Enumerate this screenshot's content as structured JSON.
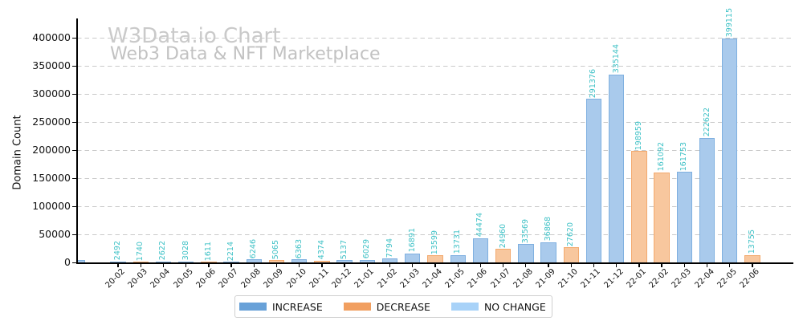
{
  "watermark": {
    "title": "W3Data.io Chart",
    "subtitle": "Web3 Data & NFT Marketplace"
  },
  "chart_data": {
    "type": "bar",
    "title": "W3Data.io Chart",
    "subtitle": "Web3 Data & NFT Marketplace",
    "xlabel": "",
    "ylabel": "Domain Count",
    "ylim": [
      0,
      435000
    ],
    "yticks": [
      0,
      50000,
      100000,
      150000,
      200000,
      250000,
      300000,
      350000,
      400000
    ],
    "grid": "horizontal dashed",
    "bar_value_labels": true,
    "legend_position": "bottom center",
    "categories": [
      "20-02",
      "20-03",
      "20-04",
      "20-05",
      "20-06",
      "20-07",
      "20-08",
      "20-09",
      "20-10",
      "20-11",
      "20-12",
      "21-01",
      "21-02",
      "21-03",
      "21-04",
      "21-05",
      "21-06",
      "21-07",
      "21-08",
      "21-09",
      "21-10",
      "21-11",
      "21-12",
      "22-01",
      "22-02",
      "22-03",
      "22-04",
      "22-05",
      "22-06"
    ],
    "points": [
      {
        "category": "20-02",
        "value": 2492,
        "series": "INCREASE"
      },
      {
        "category": "20-03",
        "value": 1740,
        "series": "DECREASE"
      },
      {
        "category": "20-04",
        "value": 2622,
        "series": "INCREASE"
      },
      {
        "category": "20-05",
        "value": 3028,
        "series": "INCREASE"
      },
      {
        "category": "20-06",
        "value": 1611,
        "series": "DECREASE"
      },
      {
        "category": "20-07",
        "value": 2214,
        "series": "INCREASE"
      },
      {
        "category": "20-08",
        "value": 6246,
        "series": "INCREASE"
      },
      {
        "category": "20-09",
        "value": 5065,
        "series": "DECREASE"
      },
      {
        "category": "20-10",
        "value": 6363,
        "series": "INCREASE"
      },
      {
        "category": "20-11",
        "value": 4374,
        "series": "DECREASE"
      },
      {
        "category": "20-12",
        "value": 5137,
        "series": "INCREASE"
      },
      {
        "category": "21-01",
        "value": 6029,
        "series": "INCREASE"
      },
      {
        "category": "21-02",
        "value": 7794,
        "series": "INCREASE"
      },
      {
        "category": "21-03",
        "value": 16891,
        "series": "INCREASE"
      },
      {
        "category": "21-04",
        "value": 13599,
        "series": "DECREASE"
      },
      {
        "category": "21-05",
        "value": 13731,
        "series": "INCREASE"
      },
      {
        "category": "21-06",
        "value": 44474,
        "series": "INCREASE"
      },
      {
        "category": "21-07",
        "value": 24960,
        "series": "DECREASE"
      },
      {
        "category": "21-08",
        "value": 33569,
        "series": "INCREASE"
      },
      {
        "category": "21-09",
        "value": 36868,
        "series": "INCREASE"
      },
      {
        "category": "21-10",
        "value": 27620,
        "series": "DECREASE"
      },
      {
        "category": "21-11",
        "value": 291376,
        "series": "INCREASE"
      },
      {
        "category": "21-12",
        "value": 335144,
        "series": "INCREASE"
      },
      {
        "category": "22-01",
        "value": 198959,
        "series": "DECREASE"
      },
      {
        "category": "22-02",
        "value": 161092,
        "series": "DECREASE"
      },
      {
        "category": "22-03",
        "value": 161753,
        "series": "INCREASE"
      },
      {
        "category": "22-04",
        "value": 222622,
        "series": "INCREASE"
      },
      {
        "category": "22-05",
        "value": 399115,
        "series": "INCREASE"
      },
      {
        "category": "22-06",
        "value": 13755,
        "series": "DECREASE"
      }
    ],
    "left_edge_clipped_bar": {
      "series": "INCREASE",
      "approx_value": 6000,
      "note": "small unlabeled bar clipped by the left axis"
    },
    "legend": {
      "entries": [
        {
          "label": "INCREASE",
          "color": "#68a1d8"
        },
        {
          "label": "DECREASE",
          "color": "#f19f60"
        },
        {
          "label": "NO CHANGE",
          "color": "#a8d2f8"
        }
      ]
    }
  },
  "colors": {
    "bar_increase_fill": "#a9caec",
    "bar_increase_edge": "#7fb0e0",
    "bar_decrease_fill": "#f8c79e",
    "bar_decrease_edge": "#f3aa6e",
    "value_label": "#3ec1c6",
    "watermark_title": "#cacaca",
    "watermark_subtitle": "#c2c2c2",
    "gridline": "#c9c9c9",
    "axis": "#000000"
  }
}
